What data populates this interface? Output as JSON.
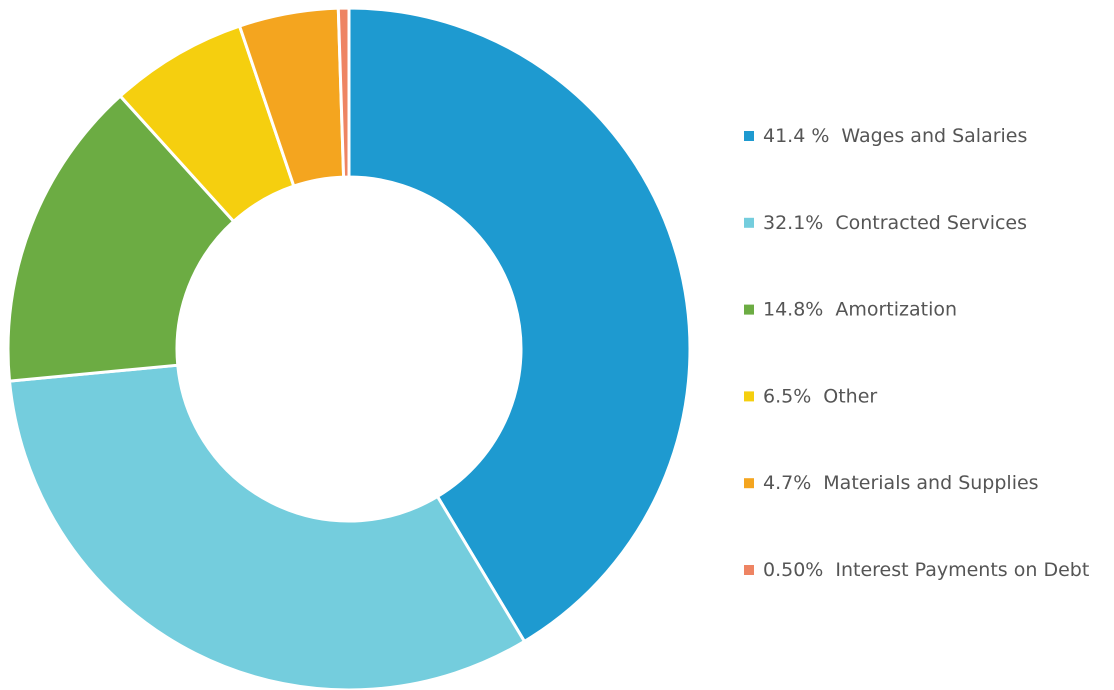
{
  "chart_data": {
    "type": "donut",
    "categories": [
      "Wages and Salaries",
      "Contracted Services",
      "Amortization",
      "Other",
      "Materials and Supplies",
      "Interest Payments on Debt"
    ],
    "values": [
      41.4,
      32.1,
      14.8,
      6.5,
      4.7,
      0.5
    ],
    "value_labels": [
      "41.4 %",
      "32.1%",
      "14.8%",
      "6.5%",
      "4.7%",
      "0.50%"
    ],
    "colors": [
      "#1e9ad0",
      "#74cddd",
      "#6cac43",
      "#f5cf0f",
      "#f4a51f",
      "#ee8463"
    ],
    "legend": "right"
  }
}
